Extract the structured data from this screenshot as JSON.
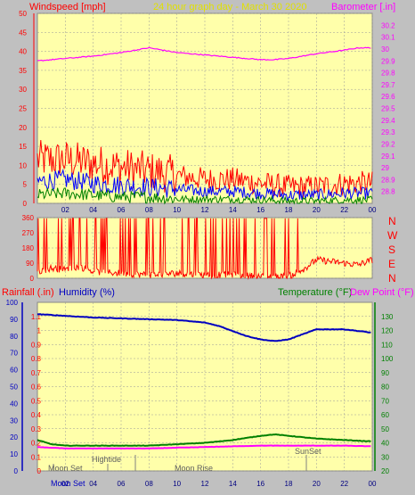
{
  "header": {
    "left_label": "Windspeed [mph]",
    "center_label": "24 hour graph day - March 30 2020",
    "right_label": "Barometer [.in]"
  },
  "compass": [
    "N",
    "W",
    "S",
    "E",
    "N"
  ],
  "lower_header": {
    "rainfall_label": "Rainfall (.in)",
    "humidity_label": "Humidity (%)",
    "temperature_label": "Temperature (°F)",
    "dewpoint_label": "Dew Point (°F)"
  },
  "events": {
    "moon_set": "Moon Set",
    "hightide": "Hightide",
    "moon_rise": "Moon Rise",
    "sunset": "SunSet",
    "moon_set_bottom": "Moon Set"
  },
  "colors": {
    "background": "#c0c0c0",
    "plot_bg": "#ffffaa",
    "grid": "#9a9a9a",
    "wind": "#ff0000",
    "gust_blue": "#0000ff",
    "avg_green": "#008000",
    "barometer": "#ff00ff",
    "humidity": "#0000c0",
    "temperature": "#008000",
    "dewpoint": "#ff00ff",
    "temp_axis": "#008000",
    "left_labels": "#ff0000",
    "title": "#e0e000"
  },
  "chart_data": [
    {
      "type": "line",
      "name": "wind-barometer",
      "x_ticks": [
        "02",
        "04",
        "06",
        "08",
        "10",
        "12",
        "14",
        "16",
        "18",
        "20",
        "22",
        "00"
      ],
      "left_axis": {
        "label": "Windspeed [mph]",
        "range": [
          0,
          50
        ],
        "ticks": [
          "0",
          "5",
          "10",
          "15",
          "20",
          "25",
          "30",
          "35",
          "40",
          "45",
          "50"
        ]
      },
      "right_axis": {
        "label": "Barometer [.in]",
        "range": [
          28.7,
          30.3
        ],
        "ticks": [
          "28.8",
          "28.9",
          "29",
          "29.1",
          "29.2",
          "29.3",
          "29.4",
          "29.5",
          "29.6",
          "29.7",
          "29.8",
          "29.9",
          "30",
          "30.1",
          "30.2"
        ]
      },
      "barometer": {
        "hours": [
          0,
          2,
          4,
          6,
          7,
          8,
          9,
          10,
          12,
          14,
          16,
          17,
          18,
          20,
          22,
          23,
          24
        ],
        "values": [
          29.9,
          29.92,
          29.94,
          29.97,
          29.99,
          30.01,
          29.99,
          29.97,
          29.95,
          29.93,
          29.91,
          29.91,
          29.92,
          29.96,
          29.99,
          30.01,
          30.01
        ]
      },
      "wind_high": {
        "hours": [
          0,
          2,
          4,
          6,
          8,
          10,
          12,
          14,
          16,
          18,
          20,
          22,
          24
        ],
        "values": [
          11,
          11,
          10,
          9,
          8,
          7,
          6,
          6,
          5,
          4,
          4,
          5,
          5
        ]
      },
      "wind_mid": {
        "hours": [
          0,
          2,
          4,
          6,
          8,
          10,
          12,
          14,
          16,
          18,
          20,
          22,
          24
        ],
        "values": [
          5.5,
          6,
          5,
          4.5,
          4,
          3.5,
          3,
          3,
          2.5,
          2,
          2,
          2.5,
          2.5
        ]
      },
      "wind_low": {
        "hours": [
          0,
          2,
          4,
          6,
          8,
          10,
          12,
          14,
          16,
          18,
          20,
          22,
          24
        ],
        "values": [
          2,
          2.5,
          2,
          1.5,
          1.5,
          1,
          1,
          1,
          0.8,
          0.5,
          0.5,
          0.8,
          0.8
        ]
      }
    },
    {
      "type": "line",
      "name": "wind-direction",
      "y_axis": {
        "range": [
          0,
          360
        ],
        "ticks": [
          "0",
          "90",
          "180",
          "270",
          "360"
        ]
      },
      "direction": {
        "hours": [
          0,
          1,
          2,
          3,
          4,
          6,
          8,
          10,
          12,
          14,
          16,
          18,
          19,
          20,
          21,
          22,
          23,
          24
        ],
        "values": [
          40,
          60,
          50,
          70,
          40,
          30,
          20,
          30,
          20,
          20,
          10,
          10,
          50,
          110,
          100,
          90,
          80,
          110
        ]
      }
    },
    {
      "type": "line",
      "name": "temp-humidity",
      "rain_axis": {
        "label": "Rainfall (.in)",
        "range": [
          0,
          1.2
        ],
        "ticks": [
          "0",
          "0.1",
          "0.2",
          "0.3",
          "0.4",
          "0.5",
          "0.6",
          "0.7",
          "0.8",
          "0.9",
          "1",
          "1.1"
        ]
      },
      "humidity_axis": {
        "label": "Humidity (%)",
        "range": [
          0,
          100
        ],
        "ticks": [
          "0",
          "10",
          "20",
          "30",
          "40",
          "50",
          "60",
          "70",
          "80",
          "90",
          "100"
        ]
      },
      "temp_axis": {
        "label": "Temperature (°F)",
        "range": [
          20,
          140
        ],
        "ticks": [
          "20",
          "30",
          "40",
          "50",
          "60",
          "70",
          "80",
          "90",
          "100",
          "110",
          "120",
          "130"
        ]
      },
      "humidity": {
        "hours": [
          0,
          2,
          4,
          6,
          8,
          10,
          12,
          13,
          14,
          15,
          16,
          17,
          18,
          19,
          20,
          21,
          22,
          23,
          24
        ],
        "values": [
          93,
          92,
          91,
          90.5,
          90,
          89.5,
          88,
          86,
          83,
          80,
          78,
          77,
          78,
          81,
          84,
          84,
          84,
          83,
          82
        ]
      },
      "temperature": {
        "hours": [
          0,
          1,
          2,
          4,
          6,
          8,
          10,
          12,
          14,
          16,
          17,
          18,
          20,
          22,
          24
        ],
        "values": [
          42,
          39,
          38,
          38,
          38,
          38,
          39,
          40,
          42,
          45,
          46,
          45,
          43,
          42,
          41
        ]
      },
      "dewpoint": {
        "hours": [
          0,
          2,
          4,
          6,
          8,
          10,
          12,
          14,
          16,
          18,
          20,
          22,
          24
        ],
        "values": [
          37,
          36,
          36,
          36,
          36,
          36.5,
          37,
          37.5,
          38,
          38,
          38,
          38,
          37.5
        ]
      }
    }
  ]
}
